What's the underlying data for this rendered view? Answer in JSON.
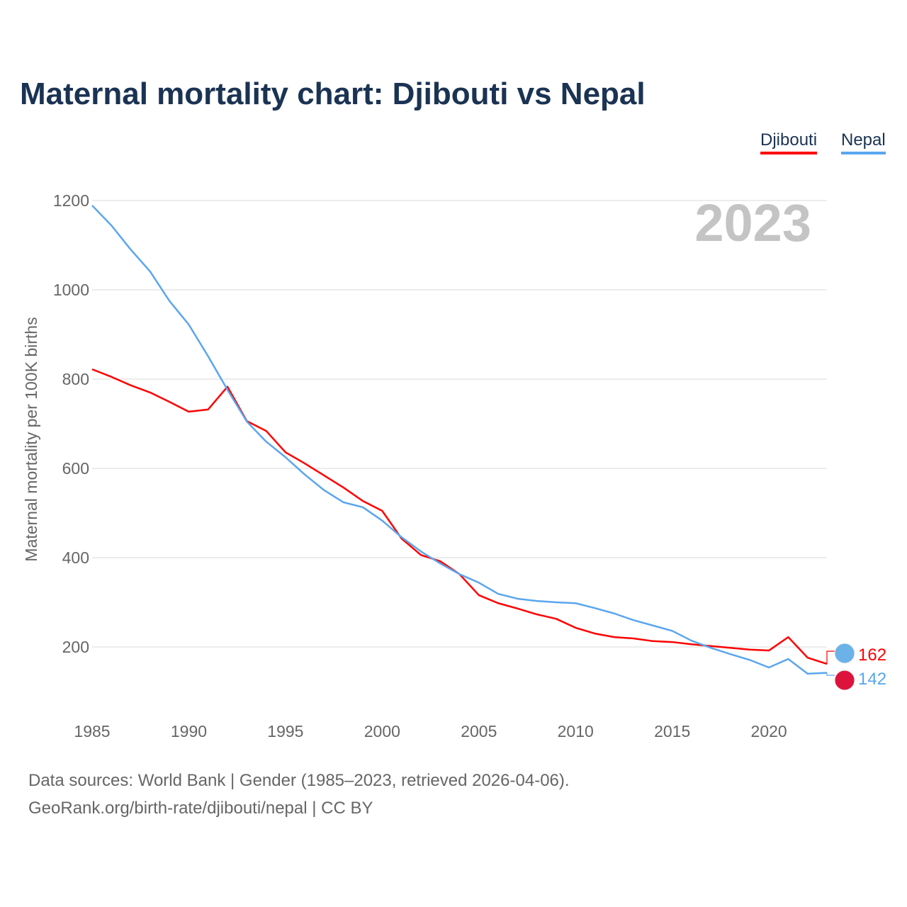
{
  "chart_data": {
    "type": "line",
    "title": "Maternal mortality chart: Djibouti vs Nepal",
    "ylabel": "Maternal mortality per 100K births",
    "xlabel": "",
    "year_label": "2023",
    "ylim": [
      0,
      1200
    ],
    "xlim": [
      1985,
      2023
    ],
    "yticks": [
      200,
      400,
      600,
      800,
      1000,
      1200
    ],
    "xticks": [
      1985,
      1990,
      1995,
      2000,
      2005,
      2010,
      2015,
      2020
    ],
    "grid": true,
    "legend_placement": "top-right",
    "x": [
      1985,
      1986,
      1987,
      1988,
      1989,
      1990,
      1991,
      1992,
      1993,
      1994,
      1995,
      1996,
      1997,
      1998,
      1999,
      2000,
      2001,
      2002,
      2003,
      2004,
      2005,
      2006,
      2007,
      2008,
      2009,
      2010,
      2011,
      2012,
      2013,
      2014,
      2015,
      2016,
      2017,
      2018,
      2019,
      2020,
      2021,
      2022,
      2023
    ],
    "series": [
      {
        "name": "Djibouti",
        "color": "#ff0000",
        "end_label": "162",
        "values": [
          822,
          805,
          786,
          770,
          749,
          727,
          732,
          783,
          706,
          684,
          636,
          611,
          584,
          557,
          527,
          505,
          443,
          406,
          392,
          363,
          316,
          298,
          286,
          273,
          263,
          243,
          230,
          222,
          219,
          213,
          211,
          206,
          202,
          198,
          194,
          192,
          222,
          176,
          162
        ]
      },
      {
        "name": "Nepal",
        "color": "#5aa6ee",
        "end_label": "142",
        "values": [
          1189,
          1144,
          1090,
          1041,
          975,
          922,
          851,
          776,
          705,
          660,
          625,
          586,
          551,
          524,
          513,
          483,
          446,
          414,
          387,
          363,
          344,
          319,
          308,
          303,
          300,
          298,
          287,
          275,
          260,
          248,
          236,
          214,
          198,
          184,
          171,
          154,
          173,
          140,
          142
        ]
      }
    ]
  },
  "footer": {
    "line1": "Data sources: World Bank | Gender (1985–2023, retrieved 2026-04-06).",
    "line2": "GeoRank.org/birth-rate/djibouti/nepal | CC BY"
  }
}
